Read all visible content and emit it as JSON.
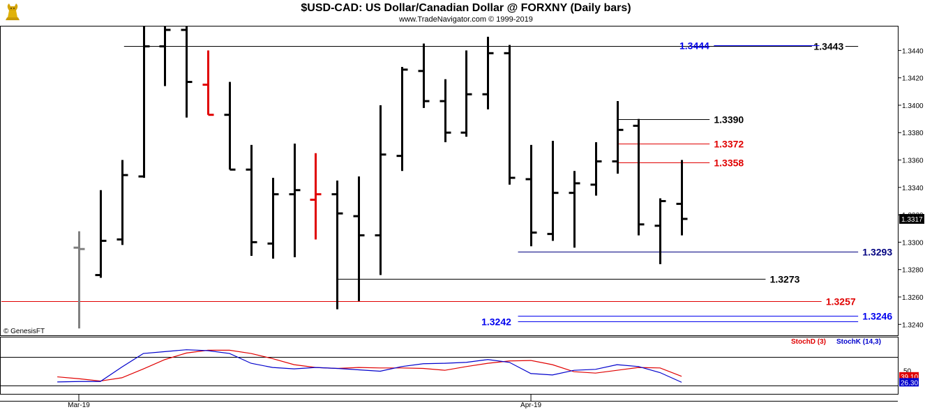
{
  "header": {
    "title": "$USD-CAD:  US Dollar/Canadian Dollar @ FORXNY  (Daily bars)",
    "subtitle": "www.TradeNavigator.com © 1999-2019",
    "logo_icon": "gold-bull-logo-icon"
  },
  "watermark": "© GenesisFT",
  "chart_data": [
    {
      "type": "ohlc",
      "ylim": [
        1.3232,
        1.3458
      ],
      "y_ticks": [
        "1.3440",
        "1.3420",
        "1.3400",
        "1.3380",
        "1.3360",
        "1.3340",
        "1.3320",
        "1.3300",
        "1.3280",
        "1.3260",
        "1.3240"
      ],
      "x_labels": [
        {
          "label": "Mar-19",
          "index": 0
        },
        {
          "label": "Apr-19",
          "index": 21
        }
      ],
      "last_price": "1.3317",
      "colors": {
        "up_down_bar": "#000000",
        "highlight_bar": "#e00000",
        "first_bar": "#808080"
      },
      "bars": [
        {
          "o": 1.3296,
          "h": 1.3308,
          "l": 1.3237,
          "c": 1.3295,
          "color": "gray"
        },
        {
          "o": 1.3276,
          "h": 1.3338,
          "l": 1.3274,
          "c": 1.3301
        },
        {
          "o": 1.3302,
          "h": 1.336,
          "l": 1.3298,
          "c": 1.3349
        },
        {
          "o": 1.3348,
          "h": 1.346,
          "l": 1.3347,
          "c": 1.3443
        },
        {
          "o": 1.3443,
          "h": 1.3458,
          "l": 1.3414,
          "c": 1.3455
        },
        {
          "o": 1.3455,
          "h": 1.346,
          "l": 1.3391,
          "c": 1.3417
        },
        {
          "o": 1.3415,
          "h": 1.344,
          "l": 1.3393,
          "c": 1.3393,
          "color": "red"
        },
        {
          "o": 1.3393,
          "h": 1.3417,
          "l": 1.3353,
          "c": 1.3353
        },
        {
          "o": 1.3353,
          "h": 1.3371,
          "l": 1.329,
          "c": 1.33
        },
        {
          "o": 1.3299,
          "h": 1.3347,
          "l": 1.3288,
          "c": 1.3335
        },
        {
          "o": 1.3335,
          "h": 1.3372,
          "l": 1.3289,
          "c": 1.3338
        },
        {
          "o": 1.3331,
          "h": 1.3365,
          "l": 1.3302,
          "c": 1.3335,
          "color": "red"
        },
        {
          "o": 1.3335,
          "h": 1.3345,
          "l": 1.3251,
          "c": 1.3321
        },
        {
          "o": 1.3319,
          "h": 1.3348,
          "l": 1.3257,
          "c": 1.3305
        },
        {
          "o": 1.3305,
          "h": 1.34,
          "l": 1.3276,
          "c": 1.3364
        },
        {
          "o": 1.3363,
          "h": 1.3428,
          "l": 1.3352,
          "c": 1.3426
        },
        {
          "o": 1.3425,
          "h": 1.3445,
          "l": 1.3398,
          "c": 1.3403
        },
        {
          "o": 1.3403,
          "h": 1.3419,
          "l": 1.3373,
          "c": 1.338
        },
        {
          "o": 1.338,
          "h": 1.344,
          "l": 1.3377,
          "c": 1.3408
        },
        {
          "o": 1.3408,
          "h": 1.345,
          "l": 1.3397,
          "c": 1.3438
        },
        {
          "o": 1.3438,
          "h": 1.3444,
          "l": 1.3342,
          "c": 1.3347
        },
        {
          "o": 1.3346,
          "h": 1.3371,
          "l": 1.3297,
          "c": 1.3307
        },
        {
          "o": 1.3306,
          "h": 1.3374,
          "l": 1.3301,
          "c": 1.3336
        },
        {
          "o": 1.3336,
          "h": 1.3352,
          "l": 1.3296,
          "c": 1.3343
        },
        {
          "o": 1.3342,
          "h": 1.3373,
          "l": 1.3334,
          "c": 1.3359
        },
        {
          "o": 1.3359,
          "h": 1.3403,
          "l": 1.335,
          "c": 1.3382
        },
        {
          "o": 1.3385,
          "h": 1.339,
          "l": 1.3305,
          "c": 1.3313
        },
        {
          "o": 1.3312,
          "h": 1.3332,
          "l": 1.3284,
          "c": 1.333
        },
        {
          "o": 1.3328,
          "h": 1.336,
          "l": 1.3305,
          "c": 1.3317
        }
      ],
      "levels": [
        {
          "value": 1.3443,
          "label": "1.3443",
          "color": "#000000",
          "from": 2.1,
          "to": 36.2,
          "label_index": 34.7,
          "align": "middle"
        },
        {
          "value": 1.3444,
          "label": "1.3444",
          "color": "#0000ee",
          "from": 29.5,
          "to": 34.4,
          "label_index": 27.9,
          "align": "start"
        },
        {
          "value": 1.339,
          "label": "1.3390",
          "color": "#000000",
          "from": 25.0,
          "to": 29.3,
          "label_index": 29.5,
          "align": "start"
        },
        {
          "value": 1.3372,
          "label": "1.3372",
          "color": "#e00000",
          "from": 25.0,
          "to": 29.3,
          "label_index": 29.5,
          "align": "start"
        },
        {
          "value": 1.3358,
          "label": "1.3358",
          "color": "#e00000",
          "from": 25.0,
          "to": 29.3,
          "label_index": 29.5,
          "align": "start"
        },
        {
          "value": 1.3293,
          "label": "1.3293",
          "color": "#000080",
          "from": 20.4,
          "to": 36.2,
          "label_index": 36.4,
          "align": "start"
        },
        {
          "value": 1.3273,
          "label": "1.3273",
          "color": "#000000",
          "from": 12.0,
          "to": 31.9,
          "label_index": 32.1,
          "align": "start"
        },
        {
          "value": 1.3257,
          "label": "1.3257",
          "color": "#e00000",
          "from": -3.6,
          "to": 34.5,
          "label_index": 34.7,
          "align": "start"
        },
        {
          "value": 1.3246,
          "label": "1.3246",
          "color": "#0000ee",
          "from": 20.4,
          "to": 36.2,
          "label_index": 36.4,
          "align": "start"
        },
        {
          "value": 1.3242,
          "label": "1.3242",
          "color": "#0000ee",
          "from": 20.4,
          "to": 36.2,
          "label_index": 18.7,
          "align": "start"
        }
      ]
    },
    {
      "type": "line",
      "ylim": [
        0,
        100
      ],
      "y_ticks": [
        "50"
      ],
      "reference_lines": [
        20,
        80
      ],
      "legend": [
        "StochD (3)",
        "StochK (14,3)"
      ],
      "last_values": [
        "39.10",
        "26.30"
      ],
      "series": [
        {
          "name": "StochD (3)",
          "color": "#e00000",
          "values": [
            38,
            34,
            29,
            36,
            55,
            75,
            89,
            95,
            95,
            88,
            77,
            64,
            58,
            56,
            58,
            57,
            57,
            56,
            52,
            60,
            67,
            72,
            73,
            64,
            49,
            46,
            52,
            58,
            57,
            39.1
          ]
        },
        {
          "name": "StochK (14,3)",
          "color": "#0000cc",
          "values": [
            27,
            28,
            28,
            59,
            88,
            92,
            96,
            94,
            88,
            67,
            58,
            55,
            58,
            56,
            53,
            50,
            60,
            66,
            67,
            69,
            75,
            69,
            45,
            42,
            52,
            54,
            64,
            60,
            47,
            26.3
          ]
        }
      ]
    }
  ]
}
